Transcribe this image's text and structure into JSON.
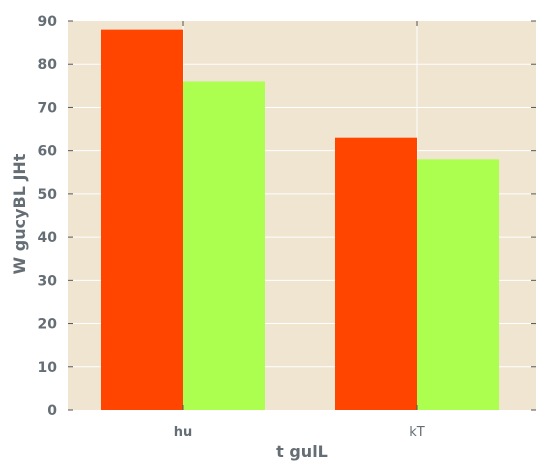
{
  "chart_data": {
    "type": "bar",
    "categories": [
      "hu",
      "kT"
    ],
    "series": [
      {
        "values": [
          88,
          63
        ],
        "color": "#ff4500"
      },
      {
        "values": [
          76,
          58
        ],
        "color": "#adff4f"
      }
    ],
    "title": "",
    "xlabel": "t gulL",
    "ylabel": "W gucyBL JHt",
    "ylim": [
      0,
      90
    ],
    "yticks": [
      0,
      10,
      20,
      30,
      40,
      50,
      60,
      70,
      80,
      90
    ],
    "bold_categories": [
      "hu"
    ],
    "grid": true,
    "background": "#efe5d1",
    "grid_color": "#ffffff",
    "axis_text_color": "#666e75"
  }
}
